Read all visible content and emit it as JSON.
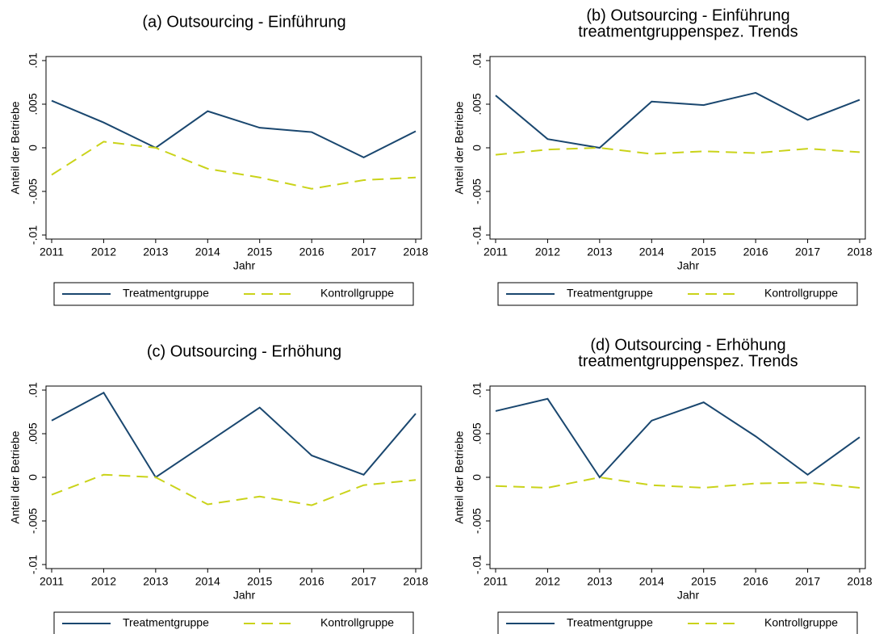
{
  "chart_data": [
    {
      "type": "line",
      "title": "(a) Outsourcing - Einführung",
      "x": [
        2011,
        2012,
        2013,
        2014,
        2015,
        2016,
        2017,
        2018
      ],
      "series": [
        {
          "name": "Treatmentgruppe",
          "color": "#1a476f",
          "values": [
            0.0054,
            0.0029,
            0,
            0.0042,
            0.0023,
            0.0018,
            -0.0011,
            0.0019
          ]
        },
        {
          "name": "Kontrollgruppe",
          "color": "#cad31a",
          "dashed": true,
          "values": [
            -0.0031,
            0.0007,
            0,
            -0.0024,
            -0.0034,
            -0.0047,
            -0.0037,
            -0.0034
          ]
        }
      ],
      "xlabel": "Jahr",
      "ylabel": "Anteil der Betriebe",
      "xlim": [
        2011,
        2018
      ],
      "xticks": [
        2011,
        2012,
        2013,
        2014,
        2015,
        2016,
        2017,
        2018
      ],
      "ylim": [
        -0.01,
        0.01
      ],
      "yticks": [
        {
          "value": -0.01,
          "label": "-.01"
        },
        {
          "value": -0.005,
          "label": "-.005"
        },
        0,
        {
          "value": 0.005,
          "label": ".005"
        },
        {
          "value": 0.01,
          "label": ".01"
        }
      ],
      "legend": "bottom"
    },
    {
      "type": "line",
      "title": "(b) Outsourcing - Einführung",
      "subtitle": "treatmentgruppenspez. Trends",
      "x": [
        2011,
        2012,
        2013,
        2014,
        2015,
        2016,
        2017,
        2018
      ],
      "series": [
        {
          "name": "Treatmentgruppe",
          "color": "#1a476f",
          "values": [
            0.006,
            0.001,
            0,
            0.0053,
            0.0049,
            0.0063,
            0.0032,
            0.0055
          ]
        },
        {
          "name": "Kontrollgruppe",
          "color": "#cad31a",
          "dashed": true,
          "values": [
            -0.0008,
            -0.0002,
            0,
            -0.0007,
            -0.0004,
            -0.0006,
            -0.0001,
            -0.0005
          ]
        }
      ],
      "xlabel": "Jahr",
      "ylabel": "Anteil der Betriebe",
      "xlim": [
        2011,
        2018
      ],
      "xticks": [
        2011,
        2012,
        2013,
        2014,
        2015,
        2016,
        2017,
        2018
      ],
      "ylim": [
        -0.01,
        0.01
      ],
      "yticks": [
        {
          "value": -0.01,
          "label": "-.01"
        },
        {
          "value": -0.005,
          "label": "-.005"
        },
        0,
        {
          "value": 0.005,
          "label": ".005"
        },
        {
          "value": 0.01,
          "label": ".01"
        }
      ],
      "legend": "bottom"
    },
    {
      "type": "line",
      "title": "(c) Outsourcing - Erhöhung",
      "x": [
        2011,
        2012,
        2013,
        2014,
        2015,
        2016,
        2017,
        2018
      ],
      "series": [
        {
          "name": "Treatmentgruppe",
          "color": "#1a476f",
          "values": [
            0.0065,
            0.0097,
            0,
            0.004,
            0.008,
            0.0025,
            0.0003,
            0.0073
          ]
        },
        {
          "name": "Kontrollgruppe",
          "color": "#cad31a",
          "dashed": true,
          "values": [
            -0.002,
            0.0003,
            0,
            -0.0031,
            -0.0022,
            -0.0032,
            -0.0009,
            -0.0003
          ]
        }
      ],
      "xlabel": "Jahr",
      "ylabel": "Anteil der Betriebe",
      "xlim": [
        2011,
        2018
      ],
      "xticks": [
        2011,
        2012,
        2013,
        2014,
        2015,
        2016,
        2017,
        2018
      ],
      "ylim": [
        -0.01,
        0.01
      ],
      "yticks": [
        {
          "value": -0.01,
          "label": "-.01"
        },
        {
          "value": -0.005,
          "label": "-.005"
        },
        0,
        {
          "value": 0.005,
          "label": ".005"
        },
        {
          "value": 0.01,
          "label": ".01"
        }
      ],
      "legend": "bottom"
    },
    {
      "type": "line",
      "title": "(d) Outsourcing - Erhöhung",
      "subtitle": "treatmentgruppenspez. Trends",
      "x": [
        2011,
        2012,
        2013,
        2014,
        2015,
        2016,
        2017,
        2018
      ],
      "series": [
        {
          "name": "Treatmentgruppe",
          "color": "#1a476f",
          "values": [
            0.0076,
            0.009,
            0,
            0.0065,
            0.0086,
            0.0047,
            0.0003,
            0.0046
          ]
        },
        {
          "name": "Kontrollgruppe",
          "color": "#cad31a",
          "dashed": true,
          "values": [
            -0.001,
            -0.0012,
            0,
            -0.0009,
            -0.0012,
            -0.0007,
            -0.0006,
            -0.0012
          ]
        }
      ],
      "xlabel": "Jahr",
      "ylabel": "Anteil der Betriebe",
      "xlim": [
        2011,
        2018
      ],
      "xticks": [
        2011,
        2012,
        2013,
        2014,
        2015,
        2016,
        2017,
        2018
      ],
      "ylim": [
        -0.01,
        0.01
      ],
      "yticks": [
        {
          "value": -0.01,
          "label": "-.01"
        },
        {
          "value": -0.005,
          "label": "-.005"
        },
        0,
        {
          "value": 0.005,
          "label": ".005"
        },
        {
          "value": 0.01,
          "label": ".01"
        }
      ],
      "legend": "bottom"
    }
  ]
}
